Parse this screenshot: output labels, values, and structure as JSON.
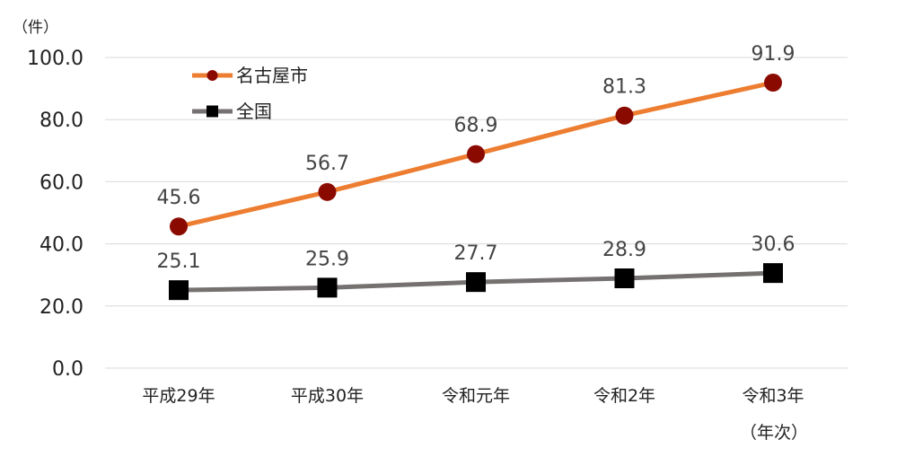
{
  "chart_data": {
    "type": "line",
    "y_unit": "（件）",
    "x_unit": "（年次）",
    "categories": [
      "平成29年",
      "平成30年",
      "令和元年",
      "令和2年",
      "令和3年"
    ],
    "ylim": [
      0,
      100
    ],
    "yticks": [
      "0.0",
      "20.0",
      "40.0",
      "60.0",
      "80.0",
      "100.0"
    ],
    "grid": true,
    "legend_position": "top-left",
    "series": [
      {
        "name": "名古屋市",
        "values": [
          45.6,
          56.7,
          68.9,
          81.3,
          91.9
        ],
        "labels": [
          "45.6",
          "56.7",
          "68.9",
          "81.3",
          "91.9"
        ],
        "line_color": "#ED7D31",
        "marker_color": "#8B0A00",
        "marker": "circle"
      },
      {
        "name": "全国",
        "values": [
          25.1,
          25.9,
          27.7,
          28.9,
          30.6
        ],
        "labels": [
          "25.1",
          "25.9",
          "27.7",
          "28.9",
          "30.6"
        ],
        "line_color": "#767171",
        "marker_color": "#000000",
        "marker": "square"
      }
    ]
  }
}
